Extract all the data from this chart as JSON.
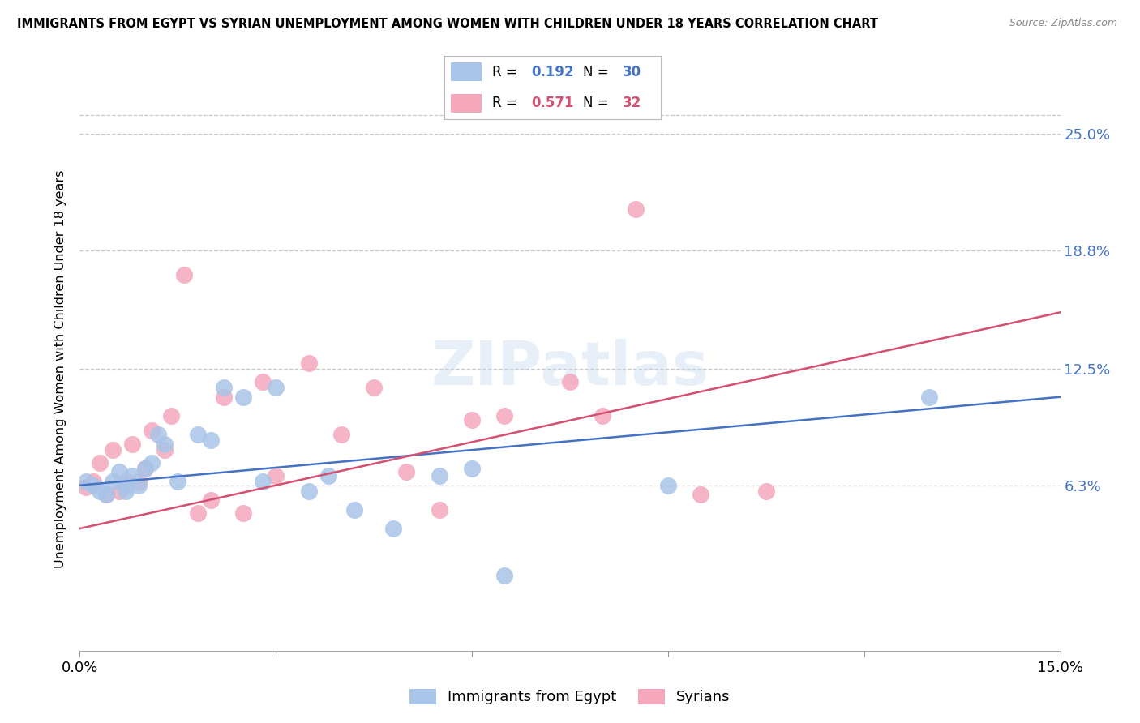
{
  "title": "IMMIGRANTS FROM EGYPT VS SYRIAN UNEMPLOYMENT AMONG WOMEN WITH CHILDREN UNDER 18 YEARS CORRELATION CHART",
  "source": "Source: ZipAtlas.com",
  "ylabel": "Unemployment Among Women with Children Under 18 years",
  "xlim": [
    0.0,
    0.15
  ],
  "ylim": [
    -0.025,
    0.275
  ],
  "ytick_vals": [
    0.063,
    0.125,
    0.188,
    0.25
  ],
  "ytick_labels": [
    "6.3%",
    "12.5%",
    "18.8%",
    "25.0%"
  ],
  "xtick_vals": [
    0.0,
    0.03,
    0.06,
    0.09,
    0.12,
    0.15
  ],
  "xtick_labels": [
    "0.0%",
    "",
    "",
    "",
    "",
    "15.0%"
  ],
  "egypt_R": 0.192,
  "egypt_N": 30,
  "syria_R": 0.571,
  "syria_N": 32,
  "egypt_color": "#a8c4e8",
  "syria_color": "#f5a8bc",
  "egypt_line_color": "#4472c4",
  "syria_line_color": "#d45070",
  "bg_color": "#ffffff",
  "grid_color": "#c8c8c8",
  "egypt_x": [
    0.001,
    0.002,
    0.003,
    0.004,
    0.005,
    0.006,
    0.007,
    0.007,
    0.008,
    0.009,
    0.01,
    0.011,
    0.012,
    0.013,
    0.015,
    0.018,
    0.02,
    0.022,
    0.025,
    0.028,
    0.03,
    0.035,
    0.038,
    0.042,
    0.048,
    0.055,
    0.06,
    0.065,
    0.09,
    0.13
  ],
  "egypt_y": [
    0.065,
    0.063,
    0.06,
    0.058,
    0.065,
    0.07,
    0.063,
    0.06,
    0.068,
    0.063,
    0.072,
    0.075,
    0.09,
    0.085,
    0.065,
    0.09,
    0.087,
    0.115,
    0.11,
    0.065,
    0.115,
    0.06,
    0.068,
    0.05,
    0.04,
    0.068,
    0.072,
    0.015,
    0.063,
    0.11
  ],
  "syria_x": [
    0.001,
    0.002,
    0.003,
    0.004,
    0.005,
    0.006,
    0.007,
    0.008,
    0.009,
    0.01,
    0.011,
    0.013,
    0.014,
    0.016,
    0.018,
    0.02,
    0.022,
    0.025,
    0.028,
    0.03,
    0.035,
    0.04,
    0.045,
    0.05,
    0.055,
    0.06,
    0.065,
    0.075,
    0.08,
    0.085,
    0.095,
    0.105
  ],
  "syria_y": [
    0.062,
    0.065,
    0.075,
    0.058,
    0.082,
    0.06,
    0.065,
    0.085,
    0.065,
    0.072,
    0.092,
    0.082,
    0.1,
    0.175,
    0.048,
    0.055,
    0.11,
    0.048,
    0.118,
    0.068,
    0.128,
    0.09,
    0.115,
    0.07,
    0.05,
    0.098,
    0.1,
    0.118,
    0.1,
    0.21,
    0.058,
    0.06
  ],
  "egypt_line_x": [
    0.0,
    0.15
  ],
  "egypt_line_y": [
    0.063,
    0.11
  ],
  "syria_line_x": [
    0.0,
    0.15
  ],
  "syria_line_y": [
    0.04,
    0.155
  ]
}
